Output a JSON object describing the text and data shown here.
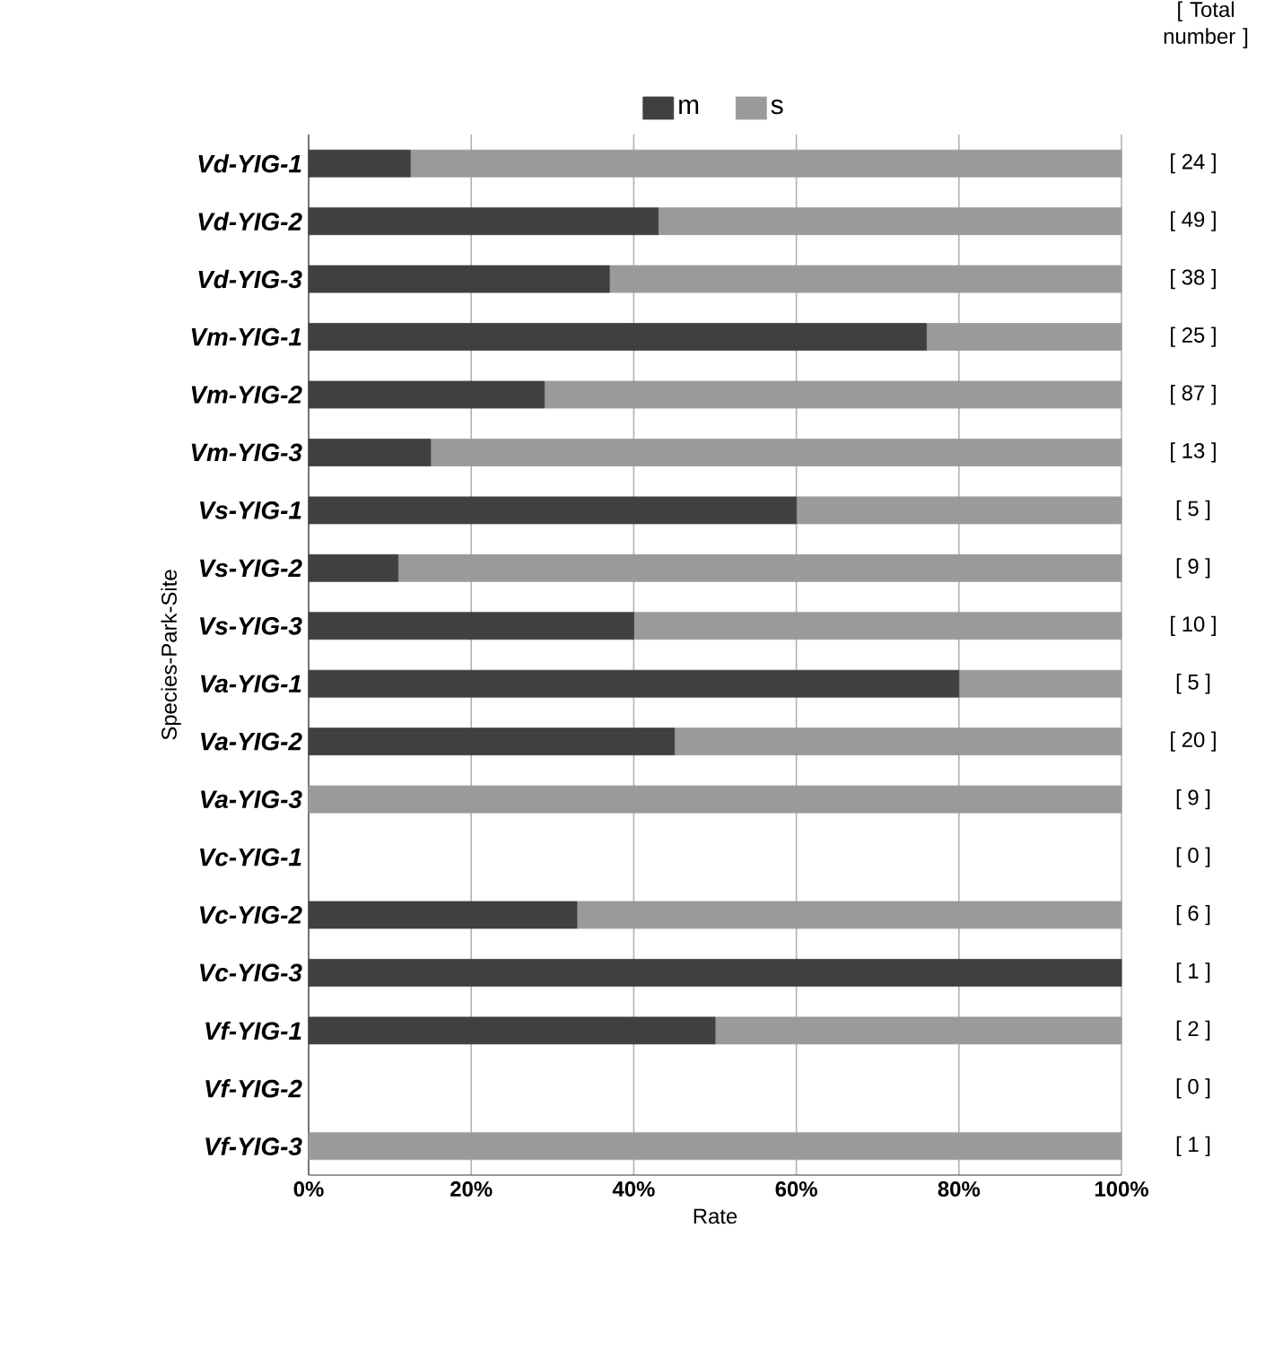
{
  "chart_data": {
    "type": "bar",
    "orientation": "horizontal",
    "stacked": true,
    "categories": [
      "Vd-YIG-1",
      "Vd-YIG-2",
      "Vd-YIG-3",
      "Vm-YIG-1",
      "Vm-YIG-2",
      "Vm-YIG-3",
      "Vs-YIG-1",
      "Vs-YIG-2",
      "Vs-YIG-3",
      "Va-YIG-1",
      "Va-YIG-2",
      "Va-YIG-3",
      "Vc-YIG-1",
      "Vc-YIG-2",
      "Vc-YIG-3",
      "Vf-YIG-1",
      "Vf-YIG-2",
      "Vf-YIG-3"
    ],
    "series": [
      {
        "name": "m",
        "color": "#404040",
        "values": [
          12.5,
          43,
          37,
          76,
          29,
          15,
          60,
          11,
          40,
          80,
          45,
          0,
          0,
          33,
          100,
          50,
          0,
          0
        ]
      },
      {
        "name": "s",
        "color": "#9a9a9a",
        "values": [
          87.5,
          57,
          63,
          24,
          71,
          85,
          40,
          89,
          60,
          20,
          55,
          100,
          0,
          67,
          0,
          50,
          0,
          100
        ]
      }
    ],
    "xlim": [
      0,
      100
    ],
    "xticks": [
      {
        "value": 0,
        "label": "0%"
      },
      {
        "value": 20,
        "label": "20%"
      },
      {
        "value": 40,
        "label": "40%"
      },
      {
        "value": 60,
        "label": "60%"
      },
      {
        "value": 80,
        "label": "80%"
      },
      {
        "value": 100,
        "label": "100%"
      }
    ],
    "xlabel": "Rate",
    "ylabel": "Species-Park-Site",
    "legend": "top",
    "grid": "x",
    "annotations": [
      "[ Total number ]",
      "[ 24 ]",
      "[ 49 ]",
      "[ 38 ]",
      "[ 25 ]",
      "[ 87 ]",
      "[ 13 ]",
      "[ 5 ]",
      "[ 9 ]",
      "[ 10 ]",
      "[ 5 ]",
      "[ 20 ]",
      "[ 9 ]",
      "[ 0 ]",
      "[ 6 ]",
      "[ 1 ]",
      "[ 2 ]",
      "[ 0 ]",
      "[ 1 ]"
    ]
  }
}
